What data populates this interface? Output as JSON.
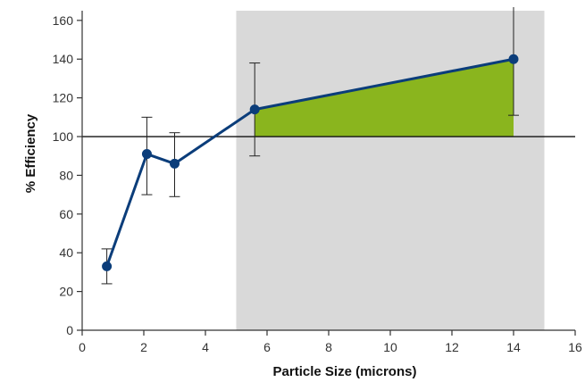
{
  "chart_data": {
    "type": "line",
    "title": "",
    "xlabel": "Particle Size (microns)",
    "ylabel": "% Efficiency",
    "xlim": [
      0,
      16
    ],
    "ylim": [
      0,
      165
    ],
    "x_ticks": [
      0,
      2,
      4,
      6,
      8,
      10,
      12,
      14,
      16
    ],
    "y_ticks": [
      0,
      20,
      40,
      60,
      80,
      100,
      120,
      140,
      160
    ],
    "reference_line": {
      "y": 100
    },
    "shaded_region": {
      "x_start": 5,
      "x_end": 15,
      "color": "#d9d9d9"
    },
    "fill_above_reference": {
      "x_start": 5.6,
      "x_end": 14,
      "color": "#8ab51e"
    },
    "series": [
      {
        "color": "#0b3d7a",
        "points": [
          {
            "x": 0.8,
            "y": 33,
            "err_low": 24,
            "err_high": 42
          },
          {
            "x": 2.1,
            "y": 91,
            "err_low": 70,
            "err_high": 110
          },
          {
            "x": 3.0,
            "y": 86,
            "err_low": 69,
            "err_high": 102
          },
          {
            "x": 5.6,
            "y": 114,
            "err_low": 90,
            "err_high": 138
          },
          {
            "x": 14.0,
            "y": 140,
            "err_low": 111,
            "err_high": 169
          }
        ]
      }
    ],
    "grid": false
  }
}
